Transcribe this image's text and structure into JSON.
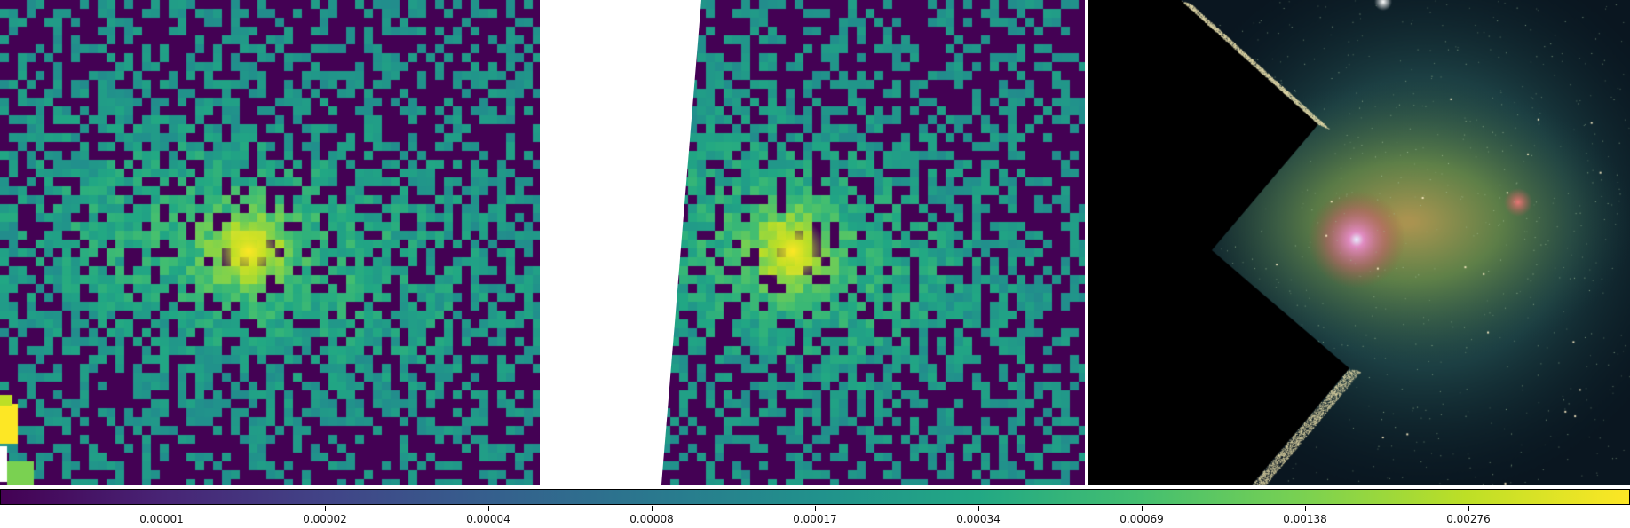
{
  "panels": [
    {
      "name": "left-pixel-map",
      "kind": "coarse-pixel-intensity-map"
    },
    {
      "name": "middle-pixel-map",
      "kind": "coarse-pixel-intensity-map"
    },
    {
      "name": "right-galaxy-image",
      "kind": "multi-color-galaxy-mosaic"
    }
  ],
  "colorbar": {
    "colormap": "viridis",
    "scale": "log",
    "ticks": [
      "0.00001",
      "0.00002",
      "0.00004",
      "0.00008",
      "0.00017",
      "0.00034",
      "0.00069",
      "0.00138",
      "0.00276"
    ]
  },
  "colors": {
    "background": "#ffffff",
    "low": "#440154",
    "mid": "#21918c",
    "high": "#fde725",
    "mosaic_background": "#000000"
  }
}
